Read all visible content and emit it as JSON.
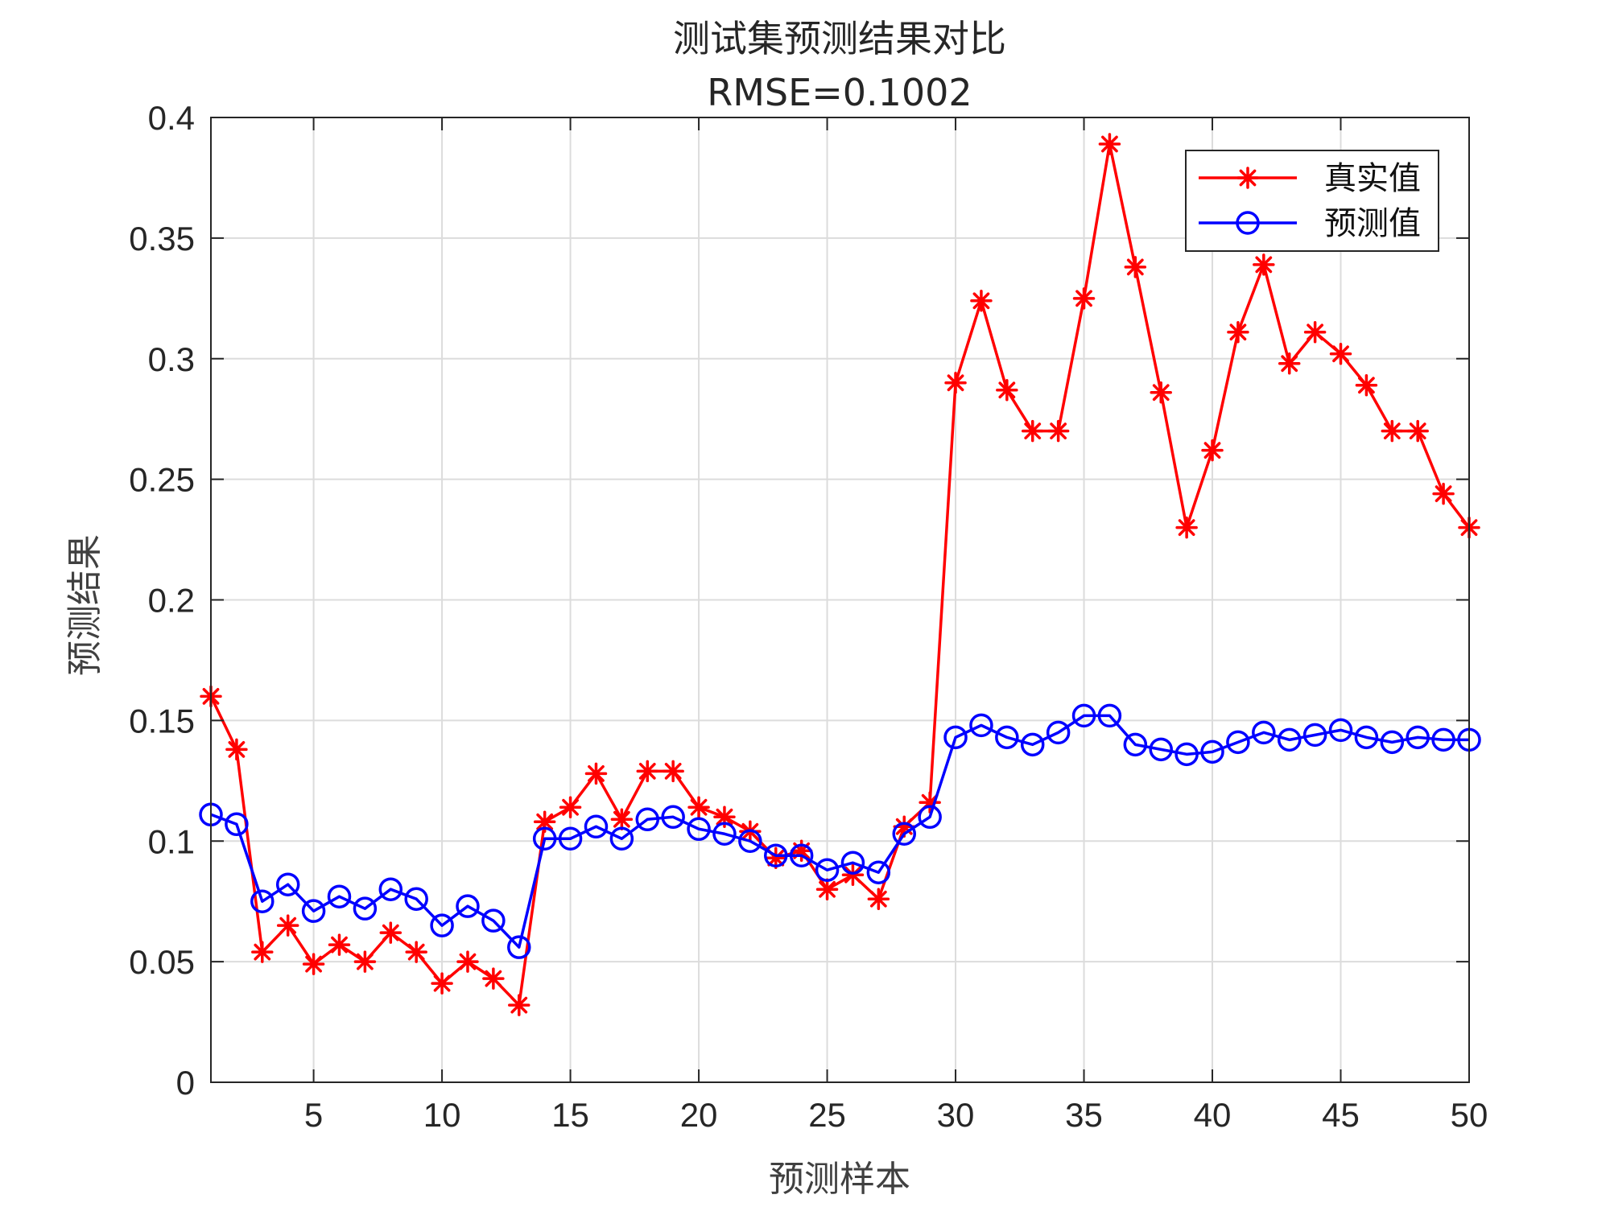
{
  "chart_data": {
    "type": "line",
    "title": "测试集预测结果对比",
    "subtitle": "RMSE=0.1002",
    "xlabel": "预测样本",
    "ylabel": "预测结果",
    "xlim": [
      1,
      50
    ],
    "ylim": [
      0,
      0.4
    ],
    "xticks": [
      5,
      10,
      15,
      20,
      25,
      30,
      35,
      40,
      45,
      50
    ],
    "xtick_labels": [
      "5",
      "10",
      "15",
      "20",
      "25",
      "30",
      "35",
      "40",
      "45",
      "50"
    ],
    "yticks": [
      0,
      0.05,
      0.1,
      0.15,
      0.2,
      0.25,
      0.3,
      0.35,
      0.4
    ],
    "ytick_labels": [
      "0",
      "0.05",
      "0.1",
      "0.15",
      "0.2",
      "0.25",
      "0.3",
      "0.35",
      "0.4"
    ],
    "grid": true,
    "legend_position": "top-right",
    "x": [
      1,
      2,
      3,
      4,
      5,
      6,
      7,
      8,
      9,
      10,
      11,
      12,
      13,
      14,
      15,
      16,
      17,
      18,
      19,
      20,
      21,
      22,
      23,
      24,
      25,
      26,
      27,
      28,
      29,
      30,
      31,
      32,
      33,
      34,
      35,
      36,
      37,
      38,
      39,
      40,
      41,
      42,
      43,
      44,
      45,
      46,
      47,
      48,
      49,
      50
    ],
    "series": [
      {
        "name": "真实值",
        "color": "#ff0000",
        "marker": "asterisk",
        "values": [
          0.16,
          0.138,
          0.054,
          0.065,
          0.049,
          0.057,
          0.05,
          0.062,
          0.054,
          0.041,
          0.05,
          0.043,
          0.032,
          0.108,
          0.114,
          0.128,
          0.109,
          0.129,
          0.129,
          0.114,
          0.11,
          0.104,
          0.093,
          0.096,
          0.08,
          0.086,
          0.076,
          0.106,
          0.116,
          0.29,
          0.324,
          0.287,
          0.27,
          0.27,
          0.325,
          0.389,
          0.338,
          0.286,
          0.23,
          0.262,
          0.311,
          0.339,
          0.298,
          0.311,
          0.302,
          0.289,
          0.27,
          0.27,
          0.244,
          0.23
        ]
      },
      {
        "name": "预测值",
        "color": "#0000ff",
        "marker": "circle",
        "values": [
          0.111,
          0.107,
          0.075,
          0.082,
          0.071,
          0.077,
          0.072,
          0.08,
          0.076,
          0.065,
          0.073,
          0.067,
          0.056,
          0.101,
          0.101,
          0.106,
          0.101,
          0.109,
          0.11,
          0.105,
          0.103,
          0.1,
          0.094,
          0.094,
          0.088,
          0.091,
          0.087,
          0.103,
          0.11,
          0.143,
          0.148,
          0.143,
          0.14,
          0.145,
          0.152,
          0.152,
          0.14,
          0.138,
          0.136,
          0.137,
          0.141,
          0.145,
          0.142,
          0.144,
          0.146,
          0.143,
          0.141,
          0.143,
          0.142,
          0.142
        ]
      }
    ]
  }
}
